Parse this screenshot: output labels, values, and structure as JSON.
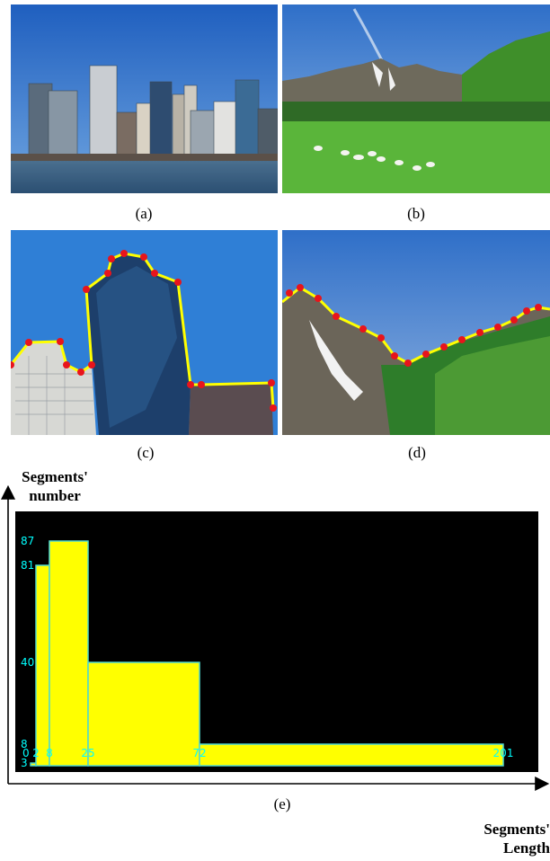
{
  "figure": {
    "panels": [
      {
        "label": "(a)",
        "content": "city skyline across water"
      },
      {
        "label": "(b)",
        "content": "mountains over green pasture with cows"
      },
      {
        "label": "(c)",
        "content": "building tops with yellow boundary segments and red corner points"
      },
      {
        "label": "(d)",
        "content": "mountain ridge with yellow boundary segments and red corner points"
      }
    ],
    "caption_e": "(e)"
  },
  "colors": {
    "sky": "#3a7fd0",
    "grass": "#4aa830",
    "segment": "#ffff00",
    "point": "#e8141c",
    "bar_fill": "#ffff00",
    "bar_edge": "#4fd8cf",
    "tick_text": "#00ffff",
    "plot_bg": "#000000"
  },
  "chart_data": {
    "type": "bar",
    "title": "",
    "xlabel": "Segments' Length",
    "ylabel": "Segments' number",
    "x_ticks": [
      "0",
      "2",
      "8",
      "25",
      "72",
      "201"
    ],
    "y_ticks": [
      "3",
      "8",
      "40",
      "81",
      "87"
    ],
    "bins": [
      {
        "from": 0,
        "to": 2,
        "value": 3
      },
      {
        "from": 2,
        "to": 8,
        "value": 81
      },
      {
        "from": 8,
        "to": 25,
        "value": 87
      },
      {
        "from": 25,
        "to": 72,
        "value": 40
      },
      {
        "from": 72,
        "to": 201,
        "value": 8
      }
    ],
    "ylim": [
      0,
      87
    ]
  }
}
